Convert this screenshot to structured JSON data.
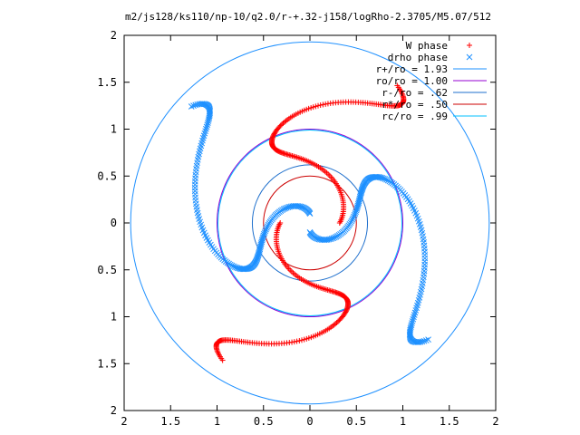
{
  "chart_data": {
    "type": "scatter",
    "title": "m2/js128/ks110/np-10/q2.0/r-+.32-j158/logRho-2.3705/M5.07/512",
    "xlim": [
      -2,
      2
    ],
    "ylim": [
      -2,
      2
    ],
    "x_ticks": [
      -2,
      -1.5,
      -1,
      -0.5,
      0,
      0.5,
      1,
      1.5,
      2
    ],
    "y_ticks": [
      -2,
      -1.5,
      -1,
      -0.5,
      0,
      0.5,
      1,
      1.5,
      2
    ],
    "x_tick_labels": [
      "2",
      "1.5",
      "1",
      "0.5",
      "0",
      "0.5",
      "1",
      "1.5",
      "2"
    ],
    "y_tick_labels": [
      "2",
      "1.5",
      "1",
      "0.5",
      "0",
      "0.5",
      "1",
      "1.5",
      "2"
    ],
    "grid": false,
    "legend_position": "top-right",
    "series": [
      {
        "name": "W phase",
        "kind": "points",
        "marker": "plus",
        "color": "#ff0000",
        "spiral": {
          "arms": [
            0,
            3.14159
          ],
          "r_in": 0.32,
          "r_out": 1.74,
          "turn": 1.2,
          "count": 170
        }
      },
      {
        "name": "drho phase",
        "kind": "points",
        "marker": "cross",
        "color": "#1e90ff",
        "spiral": {
          "arms": [
            1.57,
            4.71
          ],
          "r_in": 0.1,
          "r_out": 1.78,
          "turn": 1.4,
          "count": 170
        }
      },
      {
        "name": "r+/ro = 1.93",
        "kind": "circle",
        "radius": 1.93,
        "color": "#1e90ff"
      },
      {
        "name": "ro/ro = 1.00",
        "kind": "circle",
        "radius": 1.0,
        "color": "#9400d3"
      },
      {
        "name": "r-/ro = .62",
        "kind": "circle",
        "radius": 0.62,
        "color": "#1e6fcc"
      },
      {
        "name": "r*/ro = .50",
        "kind": "circle",
        "radius": 0.5,
        "color": "#cc0000"
      },
      {
        "name": "rc/ro = .99",
        "kind": "circle",
        "radius": 0.99,
        "color": "#00bfff"
      }
    ]
  }
}
